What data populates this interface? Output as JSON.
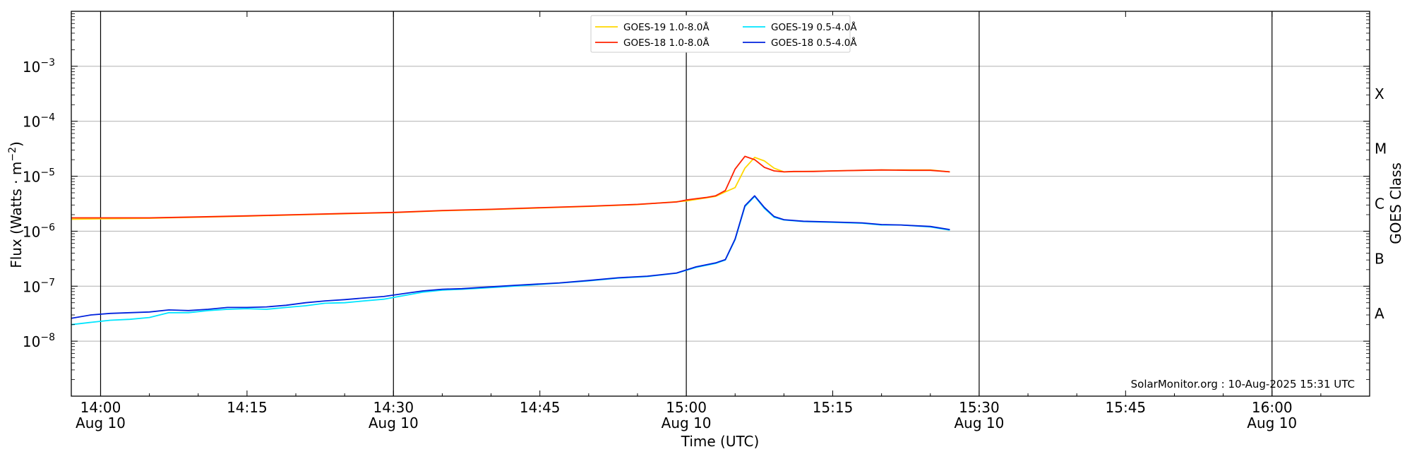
{
  "chart_data": {
    "type": "line",
    "y_scale": "log",
    "ylim": [
      1e-09,
      0.01
    ],
    "xlim": [
      "2025-08-10T13:57:00",
      "2025-08-10T16:10:00"
    ],
    "xlabel": "Time (UTC)",
    "ylabel_main": "Flux (Watts · m",
    "ylabel_sup": "−2",
    "ylabel_close": ")",
    "right_label": "GOES Class",
    "x_ticks": [
      {
        "time": "14:00",
        "date": "Aug 10"
      },
      {
        "time": "14:15",
        "date": ""
      },
      {
        "time": "14:30",
        "date": "Aug 10"
      },
      {
        "time": "14:45",
        "date": ""
      },
      {
        "time": "15:00",
        "date": "Aug 10"
      },
      {
        "time": "15:15",
        "date": ""
      },
      {
        "time": "15:30",
        "date": "Aug 10"
      },
      {
        "time": "15:45",
        "date": ""
      },
      {
        "time": "16:00",
        "date": "Aug 10"
      }
    ],
    "vertical_lines": [
      "14:00",
      "14:30",
      "15:00",
      "15:30",
      "16:00"
    ],
    "y_ticks": [
      {
        "base": "10",
        "exp": "−3",
        "value": 0.001
      },
      {
        "base": "10",
        "exp": "−4",
        "value": 0.0001
      },
      {
        "base": "10",
        "exp": "−5",
        "value": 1e-05
      },
      {
        "base": "10",
        "exp": "−6",
        "value": 1e-06
      },
      {
        "base": "10",
        "exp": "−7",
        "value": 1e-07
      },
      {
        "base": "10",
        "exp": "−8",
        "value": 1e-08
      }
    ],
    "class_labels": [
      {
        "label": "X",
        "value": 0.000316
      },
      {
        "label": "M",
        "value": 3.16e-05
      },
      {
        "label": "C",
        "value": 3.16e-06
      },
      {
        "label": "B",
        "value": 3.16e-07
      },
      {
        "label": "A",
        "value": 3.16e-08
      }
    ],
    "grid": "horizontal",
    "legend_position": "top-center",
    "annotation": "SolarMonitor.org : 10-Aug-2025 15:31 UTC",
    "series": [
      {
        "name": "GOES-19 1.0-8.0",
        "name_suffix": "Å",
        "color": "#ffd700",
        "x": [
          "13:57",
          "14:00",
          "14:05",
          "14:10",
          "14:15",
          "14:20",
          "14:25",
          "14:30",
          "14:35",
          "14:40",
          "14:45",
          "14:50",
          "14:55",
          "15:00",
          "15:03",
          "15:04",
          "15:05",
          "15:06",
          "15:07",
          "15:08",
          "15:09",
          "15:10",
          "15:15",
          "15:20",
          "15:25",
          "15:27"
        ],
        "y": [
          1.65e-06,
          1.68e-06,
          1.72e-06,
          1.8e-06,
          1.88e-06,
          1.98e-06,
          2.08e-06,
          2.18e-06,
          2.35e-06,
          2.48e-06,
          2.65e-06,
          2.82e-06,
          3.05e-06,
          3.55e-06,
          4.3e-06,
          5.2e-06,
          6.2e-06,
          1.4e-05,
          2.2e-05,
          1.9e-05,
          1.4e-05,
          1.2e-05,
          1.25e-05,
          1.3e-05,
          1.3e-05,
          1.2e-05
        ]
      },
      {
        "name": "GOES-18 1.0-8.0",
        "name_suffix": "Å",
        "color": "#ff2200",
        "x": [
          "13:57",
          "14:00",
          "14:05",
          "14:10",
          "14:15",
          "14:20",
          "14:25",
          "14:30",
          "14:35",
          "14:40",
          "14:45",
          "14:50",
          "14:55",
          "14:59",
          "15:00",
          "15:01",
          "15:02",
          "15:03",
          "15:04",
          "15:05",
          "15:06",
          "15:07",
          "15:08",
          "15:09",
          "15:10",
          "15:11",
          "15:13",
          "15:15",
          "15:18",
          "15:20",
          "15:23",
          "15:25",
          "15:27"
        ],
        "y": [
          1.75e-06,
          1.75e-06,
          1.75e-06,
          1.82e-06,
          1.9e-06,
          2e-06,
          2.1e-06,
          2.2e-06,
          2.38e-06,
          2.5e-06,
          2.68e-06,
          2.85e-06,
          3.08e-06,
          3.4e-06,
          3.7e-06,
          3.9e-06,
          4.1e-06,
          4.4e-06,
          5.5e-06,
          1.35e-05,
          2.3e-05,
          2e-05,
          1.45e-05,
          1.25e-05,
          1.2e-05,
          1.22e-05,
          1.22e-05,
          1.25e-05,
          1.28e-05,
          1.3e-05,
          1.28e-05,
          1.28e-05,
          1.2e-05
        ]
      },
      {
        "name": "GOES-19 0.5-4.0",
        "name_suffix": "Å",
        "color": "#00e5ff",
        "x": [
          "13:57",
          "13:59",
          "14:01",
          "14:03",
          "14:05",
          "14:07",
          "14:09",
          "14:11",
          "14:13",
          "14:15",
          "14:17",
          "14:19",
          "14:21",
          "14:23",
          "14:25",
          "14:27",
          "14:29",
          "14:31",
          "14:33",
          "14:35",
          "14:37",
          "14:39",
          "14:41",
          "14:43",
          "14:45",
          "14:47",
          "14:50",
          "14:53",
          "14:56",
          "14:59",
          "15:01",
          "15:03",
          "15:04",
          "15:05",
          "15:06",
          "15:07",
          "15:08",
          "15:09",
          "15:10",
          "15:12",
          "15:15",
          "15:18",
          "15:20",
          "15:22",
          "15:25",
          "15:27"
        ],
        "y": [
          2e-08,
          2.2e-08,
          2.4e-08,
          2.5e-08,
          2.7e-08,
          3.3e-08,
          3.3e-08,
          3.6e-08,
          3.8e-08,
          3.9e-08,
          3.8e-08,
          4.1e-08,
          4.4e-08,
          4.9e-08,
          5e-08,
          5.4e-08,
          5.8e-08,
          6.7e-08,
          7.8e-08,
          8.5e-08,
          8.8e-08,
          9.2e-08,
          9.7e-08,
          1.02e-07,
          1.08e-07,
          1.14e-07,
          1.25e-07,
          1.4e-07,
          1.5e-07,
          1.72e-07,
          2.2e-07,
          2.6e-07,
          3e-07,
          7e-07,
          2.8e-06,
          4.3e-06,
          2.6e-06,
          1.8e-06,
          1.6e-06,
          1.5e-06,
          1.45e-06,
          1.4e-06,
          1.3e-06,
          1.3e-06,
          1.2e-06,
          1.05e-06
        ]
      },
      {
        "name": "GOES-18 0.5-4.0",
        "name_suffix": "Å",
        "color": "#0022dd",
        "x": [
          "13:57",
          "13:59",
          "14:01",
          "14:03",
          "14:05",
          "14:07",
          "14:09",
          "14:11",
          "14:13",
          "14:15",
          "14:17",
          "14:19",
          "14:21",
          "14:23",
          "14:25",
          "14:27",
          "14:29",
          "14:31",
          "14:33",
          "14:35",
          "14:37",
          "14:39",
          "14:41",
          "14:43",
          "14:45",
          "14:47",
          "14:50",
          "14:53",
          "14:56",
          "14:59",
          "15:01",
          "15:03",
          "15:04",
          "15:05",
          "15:06",
          "15:07",
          "15:08",
          "15:09",
          "15:10",
          "15:12",
          "15:15",
          "15:18",
          "15:20",
          "15:22",
          "15:25",
          "15:27"
        ],
        "y": [
          2.6e-08,
          3e-08,
          3.2e-08,
          3.3e-08,
          3.4e-08,
          3.7e-08,
          3.6e-08,
          3.8e-08,
          4.1e-08,
          4.1e-08,
          4.2e-08,
          4.5e-08,
          5e-08,
          5.4e-08,
          5.7e-08,
          6.1e-08,
          6.5e-08,
          7.3e-08,
          8.2e-08,
          8.8e-08,
          9e-08,
          9.5e-08,
          1e-07,
          1.05e-07,
          1.1e-07,
          1.15e-07,
          1.27e-07,
          1.42e-07,
          1.52e-07,
          1.74e-07,
          2.25e-07,
          2.65e-07,
          3.05e-07,
          7.2e-07,
          2.9e-06,
          4.4e-06,
          2.7e-06,
          1.85e-06,
          1.62e-06,
          1.52e-06,
          1.47e-06,
          1.42e-06,
          1.32e-06,
          1.3e-06,
          1.22e-06,
          1.07e-06
        ]
      }
    ]
  }
}
